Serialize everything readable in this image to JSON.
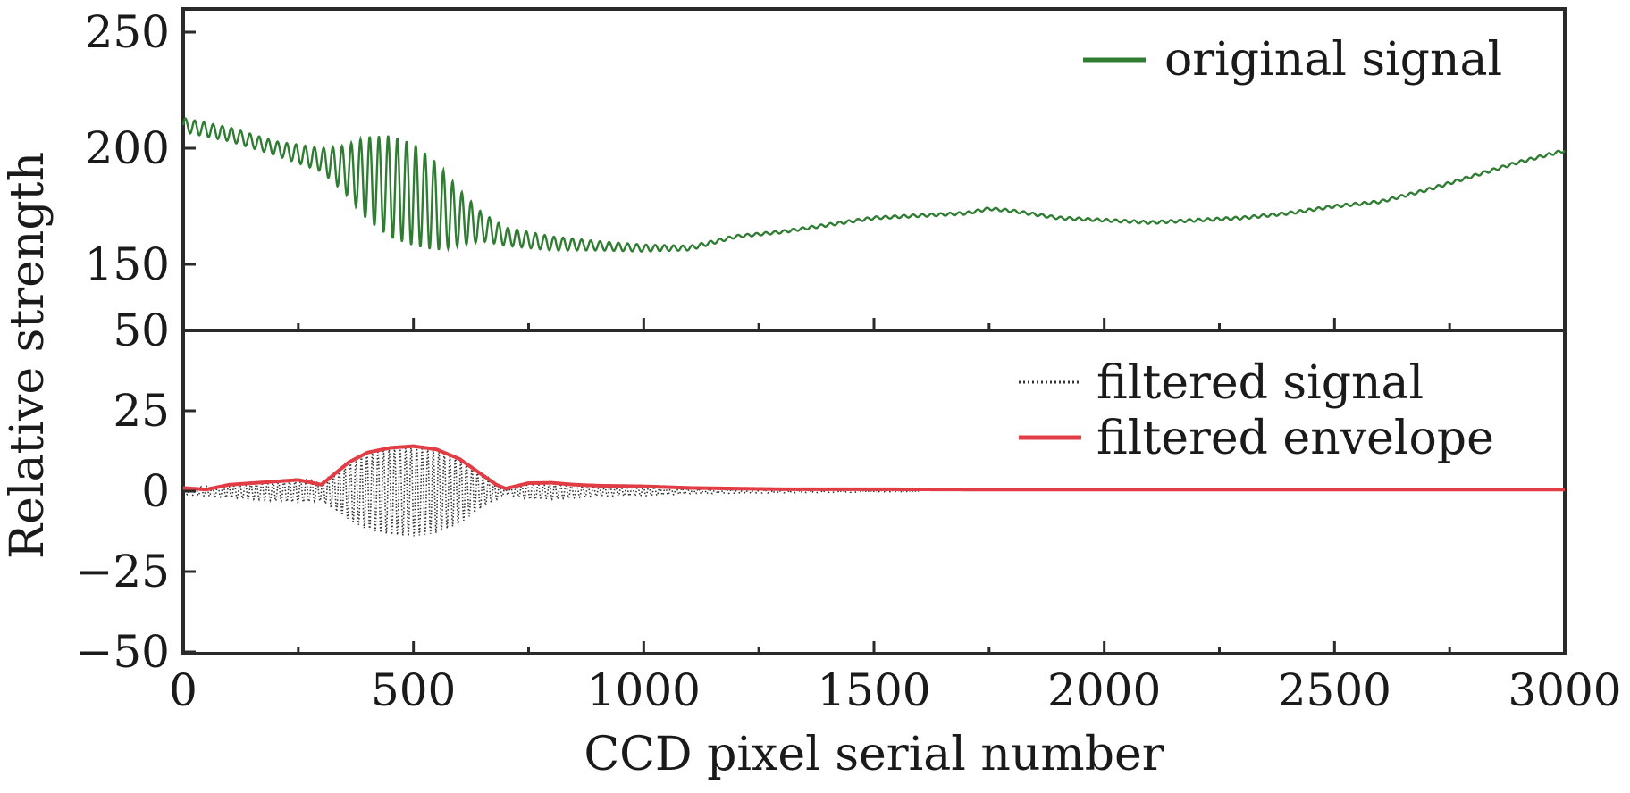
{
  "chart_data": [
    {
      "type": "line",
      "panel": "top",
      "xlabel": "CCD pixel serial number",
      "ylabel": "Relative strength",
      "xlim": [
        0,
        3000
      ],
      "ylim": [
        50,
        260
      ],
      "y_break": {
        "from": 50,
        "to": 130
      },
      "yticks": [
        50,
        150,
        200,
        250
      ],
      "ytick_labels": [
        "50",
        "150",
        "200",
        "250"
      ],
      "legend_position": "top-right",
      "series": [
        {
          "name": "original signal",
          "color": "#2e7d32",
          "baseline": {
            "x": [
              0,
              100,
              200,
              300,
              400,
              500,
              600,
              700,
              800,
              900,
              1000,
              1100,
              1200,
              1300,
              1400,
              1500,
              1600,
              1700,
              1750,
              1800,
              1900,
              2000,
              2100,
              2200,
              2300,
              2400,
              2500,
              2600,
              2700,
              2800,
              2900,
              3000
            ],
            "y": [
              210,
              206,
              200,
              195,
              187,
              180,
              170,
              162,
              159,
              158,
              157,
              157,
              162,
              164,
              167,
              170,
              171,
              172,
              174,
              173,
              170,
              169,
              168,
              169,
              170,
              172,
              175,
              177,
              182,
              188,
              194,
              199
            ]
          },
          "oscillation": {
            "x": [
              0,
              100,
              200,
              300,
              350,
              400,
              450,
              500,
              550,
              600,
              650,
              700,
              800,
              900,
              1000,
              1100,
              1200,
              3000
            ],
            "amplitude": [
              3,
              3,
              3,
              5,
              10,
              18,
              22,
              22,
              19,
              12,
              6,
              4,
              3,
              2,
              1.5,
              1,
              0.6,
              0.6
            ],
            "period": 20
          }
        }
      ]
    },
    {
      "type": "line",
      "panel": "bottom",
      "xlabel": "CCD pixel serial number",
      "ylabel": "Relative strength",
      "xlim": [
        0,
        3000
      ],
      "ylim": [
        -50,
        50
      ],
      "xticks": [
        0,
        500,
        1000,
        1500,
        2000,
        2500,
        3000
      ],
      "xtick_labels": [
        "0",
        "500",
        "1000",
        "1500",
        "2000",
        "2500",
        "3000"
      ],
      "yticks": [
        -50,
        -25,
        0,
        25
      ],
      "ytick_labels": [
        "−50",
        "−25",
        "0",
        "25"
      ],
      "legend_position": "top-right",
      "series": [
        {
          "name": "filtered signal",
          "color": "#333333",
          "style": "dotted",
          "envelope": {
            "x": [
              0,
              100,
              200,
              250,
              300,
              350,
              400,
              450,
              500,
              550,
              600,
              650,
              700,
              750,
              800,
              900,
              1000,
              1100,
              1300,
              1600
            ],
            "y": [
              1,
              2,
              3,
              3.5,
              3,
              8,
              12,
              13.5,
              14,
              13,
              10,
              5,
              1,
              2.5,
              2.5,
              1.5,
              1.5,
              0.8,
              0.5,
              0.2
            ]
          },
          "period": 12
        },
        {
          "name": "filtered envelope",
          "color": "#e23c45",
          "x": [
            0,
            50,
            100,
            150,
            200,
            250,
            300,
            330,
            360,
            400,
            450,
            500,
            550,
            600,
            640,
            680,
            700,
            750,
            800,
            850,
            900,
            1000,
            1100,
            1300,
            1500,
            1700,
            2000,
            2200,
            2500,
            2700,
            3000
          ],
          "y": [
            1,
            0.5,
            2,
            2.5,
            3,
            3.5,
            2,
            5.5,
            9,
            12,
            13.5,
            14,
            13,
            10,
            6,
            2,
            0.8,
            2.5,
            2.6,
            2,
            1.7,
            1.5,
            1,
            0.6,
            0.6,
            0.5,
            0.5,
            0.5,
            0.5,
            0.5,
            0.5
          ]
        }
      ]
    }
  ],
  "legend": {
    "original": "original signal",
    "filtered": "filtered signal",
    "envelope": "filtered envelope"
  },
  "axes": {
    "xlabel": "CCD pixel serial number",
    "ylabel": "Relative strength"
  },
  "colors": {
    "original": "#2e7d32",
    "filtered": "#333333",
    "envelope": "#e23c45"
  }
}
